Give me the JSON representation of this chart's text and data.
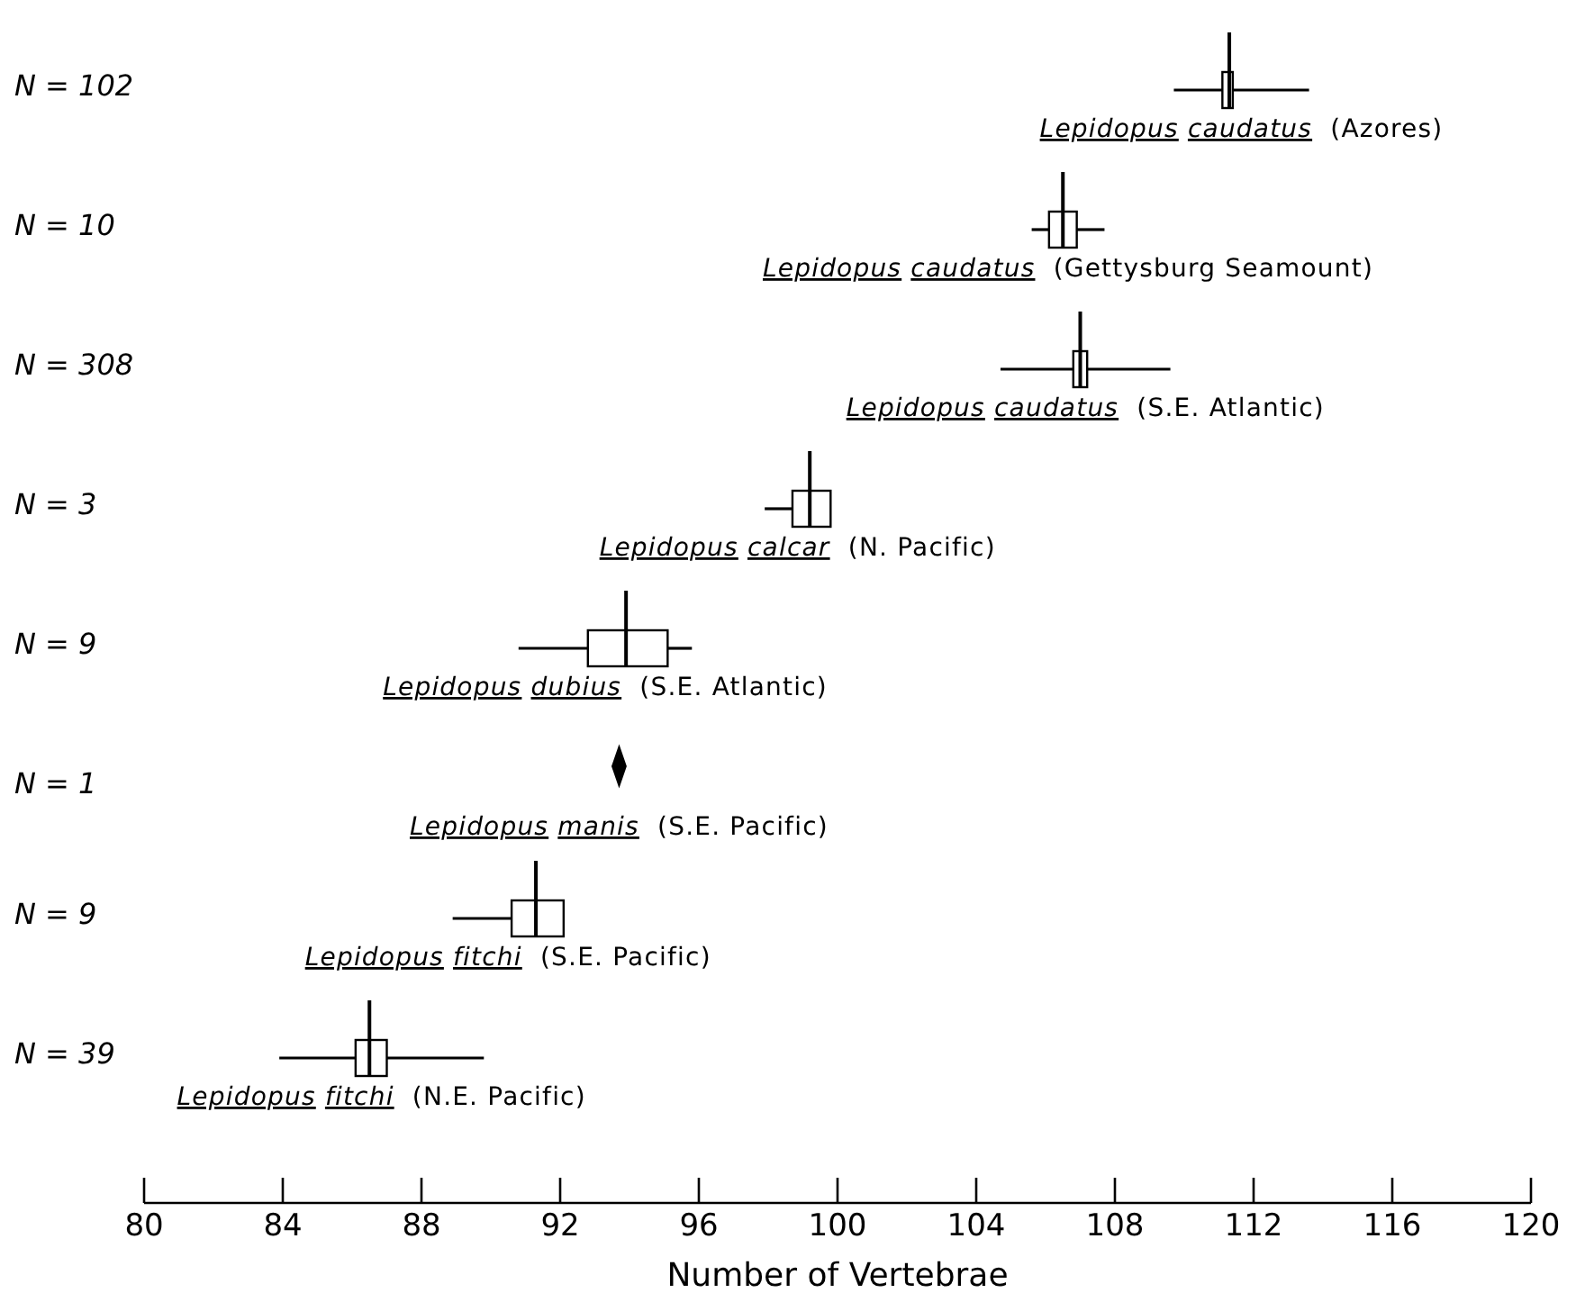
{
  "chart_data": {
    "type": "box",
    "orientation": "horizontal",
    "xlabel": "Number of Vertebrae",
    "categories": [
      "N = 102",
      "N = 10",
      "N = 308",
      "N = 3",
      "N = 9",
      "N = 1",
      "N = 9",
      "N = 39"
    ],
    "xlim": [
      80,
      120
    ],
    "xticks": [
      80,
      84,
      88,
      92,
      96,
      100,
      104,
      108,
      112,
      116,
      120
    ],
    "series": [
      {
        "type": "box",
        "color": "#000000",
        "boxes": [
          {
            "low": 109.7,
            "q1": 111.1,
            "median": 111.3,
            "q3": 111.4,
            "high": 113.6
          },
          {
            "low": 105.6,
            "q1": 106.1,
            "median": 106.5,
            "q3": 106.9,
            "high": 107.7
          },
          {
            "low": 104.7,
            "q1": 106.8,
            "median": 107.0,
            "q3": 107.2,
            "high": 109.6
          },
          {
            "low": 97.9,
            "q1": 98.7,
            "median": 99.2,
            "q3": 99.8,
            "high": 99.8
          },
          {
            "low": 90.8,
            "q1": 92.8,
            "median": 93.9,
            "q3": 95.1,
            "high": 95.8
          },
          null,
          {
            "low": 88.9,
            "q1": 90.6,
            "median": 91.3,
            "q3": 92.1,
            "high": 92.1
          },
          {
            "low": 83.9,
            "q1": 86.1,
            "median": 86.5,
            "q3": 87.0,
            "high": 89.8
          }
        ]
      },
      {
        "type": "scatter",
        "color": "#000000",
        "marker": "diamond",
        "x": [
          "N = 1"
        ],
        "values": [
          93.7
        ]
      }
    ],
    "annotations": [
      "Lepidopus caudatus (Azores)",
      "Lepidopus caudatus (Gettysburg Seamount)",
      "Lepidopus caudatus (S.E. Atlantic)",
      "Lepidopus calcar (N. Pacific)",
      "Lepidopus dubius (S.E. Atlantic)",
      "Lepidopus manis (S.E. Pacific)",
      "Lepidopus fitchi (S.E. Pacific)",
      "Lepidopus fitchi (N.E. Pacific)"
    ]
  }
}
